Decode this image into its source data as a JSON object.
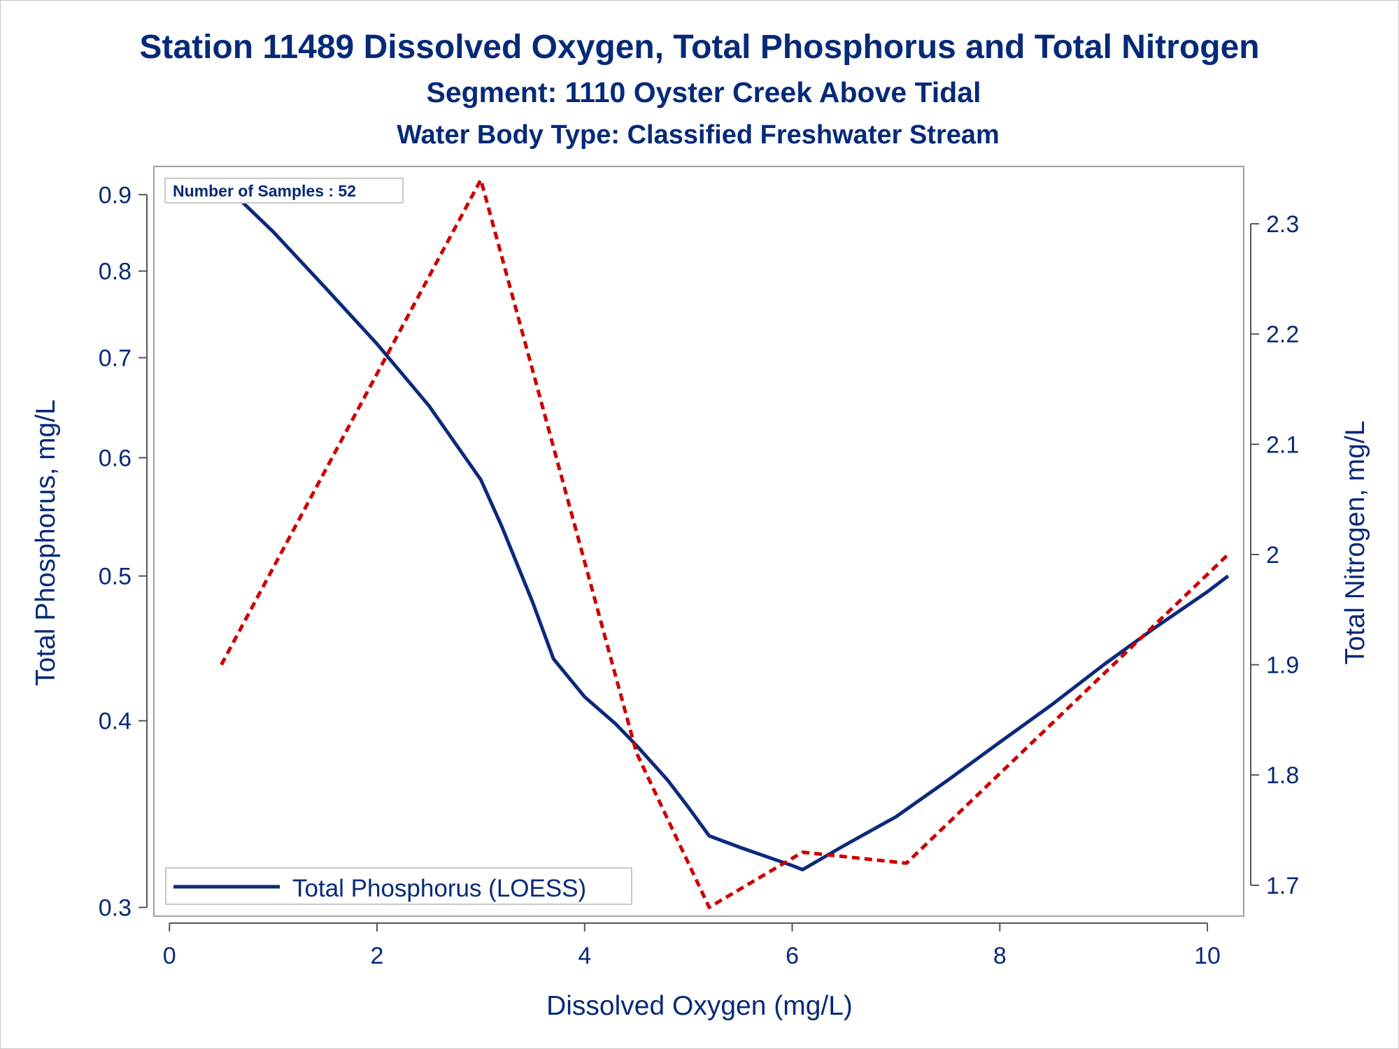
{
  "chart_data": {
    "type": "line",
    "title": "Station 11489  Dissolved Oxygen, Total Phosphorus and Total Nitrogen",
    "subtitle": "Segment: 1110  Oyster Creek Above Tidal",
    "subtitle2": "Water Body Type: Classified Freshwater Stream",
    "xlabel": "Dissolved Oxygen (mg/L)",
    "ylabel": "Total Phosphorus, mg/L",
    "y2label": "Total Nitrogen, mg/L",
    "xlim": [
      -0.15,
      10.35
    ],
    "ylim": [
      0.296,
      0.94
    ],
    "yscale": "log",
    "y2lim": [
      1.672,
      2.352
    ],
    "x_ticks": [
      0,
      2,
      4,
      6,
      8,
      10
    ],
    "y_ticks": [
      0.3,
      0.4,
      0.5,
      0.6,
      0.7,
      0.8,
      0.9
    ],
    "y2_ticks": [
      1.7,
      1.8,
      1.9,
      2,
      2.1,
      2.2,
      2.3
    ],
    "annotation": "Number of Samples : 52",
    "legend": {
      "entries": [
        "Total Phosphorus (LOESS)"
      ],
      "position": "bottom-left"
    },
    "series": [
      {
        "name": "Total Phosphorus (LOESS)",
        "axis": "left",
        "color": "#0b2a7a",
        "style": "solid",
        "x": [
          0.5,
          0.7,
          1.0,
          1.5,
          2.0,
          2.5,
          3.0,
          3.2,
          3.5,
          3.7,
          4.0,
          4.3,
          4.5,
          4.8,
          5.0,
          5.2,
          5.5,
          6.0,
          6.1,
          6.5,
          7.0,
          7.5,
          8.0,
          8.5,
          9.0,
          9.5,
          10.0,
          10.2
        ],
        "y": [
          0.92,
          0.89,
          0.85,
          0.78,
          0.715,
          0.65,
          0.58,
          0.54,
          0.48,
          0.44,
          0.415,
          0.398,
          0.385,
          0.365,
          0.35,
          0.335,
          0.329,
          0.32,
          0.318,
          0.33,
          0.345,
          0.365,
          0.387,
          0.41,
          0.436,
          0.462,
          0.488,
          0.5
        ]
      },
      {
        "name": "Total Nitrogen",
        "axis": "right",
        "color": "#cc0000",
        "style": "dotted",
        "x": [
          0.5,
          3.0,
          4.5,
          5.2,
          6.1,
          7.1,
          10.2
        ],
        "y": [
          1.9,
          2.34,
          1.82,
          1.68,
          1.73,
          1.72,
          2.0
        ]
      }
    ]
  }
}
